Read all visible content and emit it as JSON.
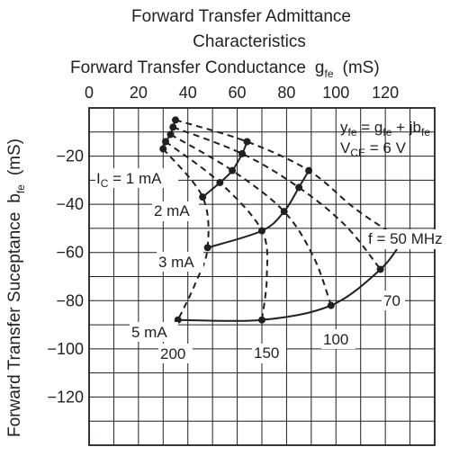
{
  "chart_data": {
    "type": "line",
    "title_line1": "Forward Transfer Admittance",
    "title_line2": "Characteristics",
    "x_axis": {
      "label": "Forward Transfer Conductance",
      "symbol": "g",
      "symbol_sub": "fe",
      "unit": "(mS)",
      "range": [
        0,
        140
      ],
      "ticks": [
        0,
        20,
        40,
        60,
        80,
        100,
        120
      ],
      "tick_labels": [
        "0",
        "20",
        "40",
        "60",
        "80",
        "100",
        "120"
      ]
    },
    "y_axis": {
      "label": "Forward Transfer Suceptance",
      "symbol": "b",
      "symbol_sub": "fe",
      "unit": "(mS)",
      "range": [
        -140,
        0
      ],
      "ticks": [
        -20,
        -40,
        -60,
        -80,
        -100,
        -120
      ],
      "tick_labels": [
        "−20",
        "−40",
        "−60",
        "−80",
        "−100",
        "−120"
      ]
    },
    "grid": true,
    "formula": {
      "line1": {
        "a": "y",
        "a_sub": "fe",
        "mid": " = g",
        "mid_sub": "fe",
        "tail": " + jb",
        "tail_sub": "fe"
      },
      "line2": {
        "a": "V",
        "a_sub": "CE",
        "tail": " = 6 V"
      }
    },
    "current_series": [
      {
        "name": "1 mA",
        "label": "I",
        "label_sub": "C",
        "label_tail": " = 1 mA",
        "points": [
          [
            35,
            -5
          ],
          [
            34,
            -8
          ],
          [
            33,
            -11
          ],
          [
            31,
            -14
          ],
          [
            30,
            -17
          ]
        ]
      },
      {
        "name": "2 mA",
        "label": "2 mA",
        "points": [
          [
            64,
            -14
          ],
          [
            62,
            -19
          ],
          [
            58,
            -26
          ],
          [
            53,
            -31
          ],
          [
            46,
            -37
          ]
        ]
      },
      {
        "name": "3 mA",
        "label": "3 mA",
        "points": [
          [
            89,
            -26
          ],
          [
            85,
            -33
          ],
          [
            79,
            -43
          ],
          [
            70,
            -51
          ],
          [
            48,
            -58
          ]
        ]
      },
      {
        "name": "5 mA",
        "label": "5 mA",
        "points": [
          [
            127,
            -55
          ],
          [
            118,
            -67
          ],
          [
            98,
            -82
          ],
          [
            70,
            -88
          ],
          [
            36,
            -88
          ]
        ]
      }
    ],
    "frequency_series": [
      {
        "name": "f = 50 MHz",
        "label": "f = 50 MHz",
        "points": [
          [
            35,
            -5
          ],
          [
            64,
            -14
          ],
          [
            89,
            -26
          ],
          [
            108,
            -42
          ],
          [
            127,
            -55
          ]
        ]
      },
      {
        "name": "70",
        "label": "70",
        "points": [
          [
            34,
            -8
          ],
          [
            62,
            -19
          ],
          [
            85,
            -33
          ],
          [
            104,
            -49
          ],
          [
            118,
            -67
          ]
        ]
      },
      {
        "name": "100",
        "label": "100",
        "points": [
          [
            33,
            -11
          ],
          [
            58,
            -26
          ],
          [
            79,
            -43
          ],
          [
            91,
            -62
          ],
          [
            98,
            -82
          ]
        ]
      },
      {
        "name": "150",
        "label": "150",
        "points": [
          [
            31,
            -14
          ],
          [
            53,
            -31
          ],
          [
            70,
            -51
          ],
          [
            72,
            -70
          ],
          [
            70,
            -88
          ]
        ]
      },
      {
        "name": "200",
        "label": "200",
        "points": [
          [
            30,
            -17
          ],
          [
            46,
            -37
          ],
          [
            48,
            -58
          ],
          [
            43,
            -73
          ],
          [
            36,
            -88
          ]
        ]
      }
    ]
  }
}
